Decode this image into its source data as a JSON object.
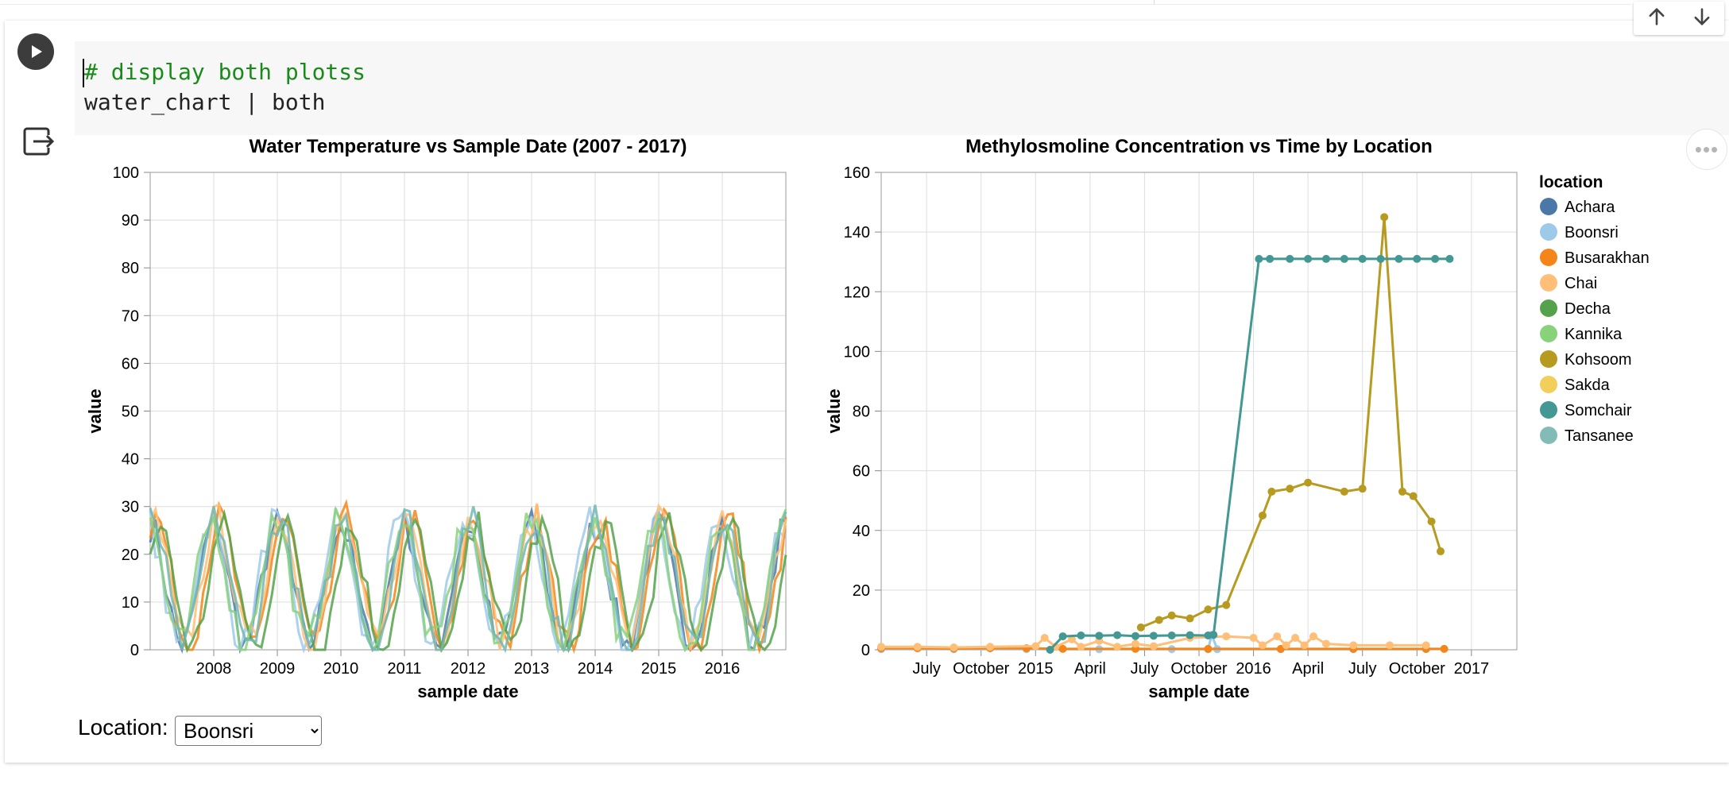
{
  "code": {
    "comment": "# display both plotss",
    "line2": "water_chart | both"
  },
  "controls": {
    "location_label": "Location:",
    "location_selected": "Boonsri"
  },
  "chart_data": [
    {
      "type": "line",
      "title": "Water Temperature vs Sample Date (2007 - 2017)",
      "xlabel": "sample date",
      "ylabel": "value",
      "ylim": [
        0,
        100
      ],
      "yticks": [
        "0",
        "10",
        "20",
        "30",
        "40",
        "50",
        "60",
        "70",
        "80",
        "90",
        "100"
      ],
      "xticks": [
        {
          "year": 2008,
          "label": "2008"
        },
        {
          "year": 2009,
          "label": "2009"
        },
        {
          "year": 2010,
          "label": "2010"
        },
        {
          "year": 2011,
          "label": "2011"
        },
        {
          "year": 2012,
          "label": "2012"
        },
        {
          "year": 2013,
          "label": "2013"
        },
        {
          "year": 2014,
          "label": "2014"
        },
        {
          "year": 2015,
          "label": "2015"
        },
        {
          "year": 2016,
          "label": "2016"
        }
      ],
      "xrange": [
        2007.0,
        2017.0
      ],
      "description_hint": "Seasonal oscillation between ~0 and ~30 for all locations",
      "series": [
        {
          "color": "#4c78a8",
          "phase": 0.05,
          "amp": 12.5,
          "base": 13.5
        },
        {
          "color": "#9ecae9",
          "phase": 0.1,
          "amp": 13,
          "base": 14
        },
        {
          "color": "#f58518",
          "phase": -0.05,
          "amp": 13.5,
          "base": 14
        },
        {
          "color": "#ffbf79",
          "phase": 0.0,
          "amp": 13,
          "base": 14.5
        },
        {
          "color": "#54a24b",
          "phase": -0.1,
          "amp": 12.5,
          "base": 13
        },
        {
          "color": "#88d27a",
          "phase": 0.08,
          "amp": 13,
          "base": 14
        },
        {
          "color": "#72b7b2",
          "phase": 0.02,
          "amp": 13.5,
          "base": 14
        }
      ]
    },
    {
      "type": "line",
      "title": "Methylosmoline Concentration vs Time by Location",
      "xlabel": "sample date",
      "ylabel": "value",
      "ylim": [
        0,
        160
      ],
      "yticks": [
        "0",
        "20",
        "40",
        "60",
        "80",
        "100",
        "120",
        "140",
        "160"
      ],
      "xrange": [
        0,
        35
      ],
      "xticks": [
        {
          "t": 2.5,
          "label": "July",
          "bold": false
        },
        {
          "t": 5.5,
          "label": "October",
          "bold": false
        },
        {
          "t": 8.5,
          "label": "2015",
          "bold": true
        },
        {
          "t": 11.5,
          "label": "April",
          "bold": false
        },
        {
          "t": 14.5,
          "label": "July",
          "bold": false
        },
        {
          "t": 17.5,
          "label": "October",
          "bold": false
        },
        {
          "t": 20.5,
          "label": "2016",
          "bold": true
        },
        {
          "t": 23.5,
          "label": "April",
          "bold": false
        },
        {
          "t": 26.5,
          "label": "July",
          "bold": false
        },
        {
          "t": 29.5,
          "label": "October",
          "bold": false
        },
        {
          "t": 32.5,
          "label": "2017",
          "bold": true
        }
      ],
      "legend": {
        "title": "location",
        "items": [
          {
            "label": "Achara",
            "color": "#4c78a8"
          },
          {
            "label": "Boonsri",
            "color": "#9ecae9"
          },
          {
            "label": "Busarakhan",
            "color": "#f58518"
          },
          {
            "label": "Chai",
            "color": "#ffbf79"
          },
          {
            "label": "Decha",
            "color": "#54a24b"
          },
          {
            "label": "Kannika",
            "color": "#88d27a"
          },
          {
            "label": "Kohsoom",
            "color": "#b79a20"
          },
          {
            "label": "Sakda",
            "color": "#f2cf5b"
          },
          {
            "label": "Somchair",
            "color": "#439894"
          },
          {
            "label": "Tansanee",
            "color": "#83bcb6"
          }
        ]
      },
      "series": [
        {
          "name": "Somchair",
          "color": "#439894",
          "points": [
            [
              9.3,
              0
            ],
            [
              10,
              4.5
            ],
            [
              11,
              4.8
            ],
            [
              12,
              4.7
            ],
            [
              13,
              4.9
            ],
            [
              14,
              4.6
            ],
            [
              15,
              4.7
            ],
            [
              16,
              4.8
            ],
            [
              17,
              4.9
            ],
            [
              18,
              4.8
            ],
            [
              18.3,
              5.0
            ],
            [
              20.8,
              131
            ],
            [
              21.4,
              131
            ],
            [
              22.5,
              131
            ],
            [
              23.5,
              131
            ],
            [
              24.5,
              131
            ],
            [
              25.5,
              131
            ],
            [
              26.5,
              131
            ],
            [
              27.5,
              131
            ],
            [
              28.5,
              131
            ],
            [
              29.5,
              131
            ],
            [
              30.5,
              131
            ],
            [
              31.3,
              131
            ]
          ]
        },
        {
          "name": "Kohsoom",
          "color": "#b79a20",
          "points": [
            [
              14.3,
              7.5
            ],
            [
              15.3,
              10
            ],
            [
              16,
              11.5
            ],
            [
              17,
              10.5
            ],
            [
              18,
              13.5
            ],
            [
              19,
              15
            ],
            [
              21,
              45
            ],
            [
              21.5,
              53
            ],
            [
              22.5,
              54
            ],
            [
              23.5,
              56
            ],
            [
              25.5,
              53
            ],
            [
              26.5,
              54
            ],
            [
              27.7,
              145
            ],
            [
              28.7,
              53
            ],
            [
              29.3,
              51.5
            ],
            [
              30.3,
              43
            ],
            [
              30.8,
              33
            ]
          ]
        },
        {
          "name": "Chai",
          "color": "#ffbf79",
          "points": [
            [
              0,
              1
            ],
            [
              2,
              1
            ],
            [
              4,
              0.8
            ],
            [
              6,
              1
            ],
            [
              8.5,
              1.2
            ],
            [
              9,
              4
            ],
            [
              9.6,
              1
            ],
            [
              10.5,
              3.5
            ],
            [
              11,
              1
            ],
            [
              12,
              3
            ],
            [
              13,
              1
            ],
            [
              14,
              2
            ],
            [
              15,
              1.2
            ],
            [
              17,
              4
            ],
            [
              19,
              4.5
            ],
            [
              20.5,
              4
            ],
            [
              21,
              1.5
            ],
            [
              21.8,
              4.5
            ],
            [
              22.3,
              1.5
            ],
            [
              22.8,
              4
            ],
            [
              23.3,
              1.5
            ],
            [
              23.8,
              4.5
            ],
            [
              24.5,
              2
            ],
            [
              26,
              1.5
            ],
            [
              28,
              1.5
            ],
            [
              30,
              1.5
            ]
          ]
        },
        {
          "name": "Busarakhan",
          "color": "#f58518",
          "points": [
            [
              0,
              0.5
            ],
            [
              2,
              0.5
            ],
            [
              4,
              0.4
            ],
            [
              6,
              0.5
            ],
            [
              8,
              0.5
            ],
            [
              10,
              0.3
            ],
            [
              14,
              0.3
            ],
            [
              18,
              0.3
            ],
            [
              22,
              0.3
            ],
            [
              26,
              0.3
            ],
            [
              30,
              0.3
            ],
            [
              31,
              0.3
            ]
          ]
        },
        {
          "name": "Boonsri",
          "color": "#9ecae9",
          "points": [
            [
              0,
              0.2
            ],
            [
              4,
              0.2
            ],
            [
              8,
              0.2
            ],
            [
              12,
              0.2
            ],
            [
              16,
              0.2
            ],
            [
              18,
              0.2
            ],
            [
              18.2,
              5
            ],
            [
              18.5,
              0.2
            ],
            [
              22,
              0.2
            ],
            [
              26,
              0.2
            ],
            [
              30,
              0.2
            ]
          ]
        }
      ]
    }
  ]
}
